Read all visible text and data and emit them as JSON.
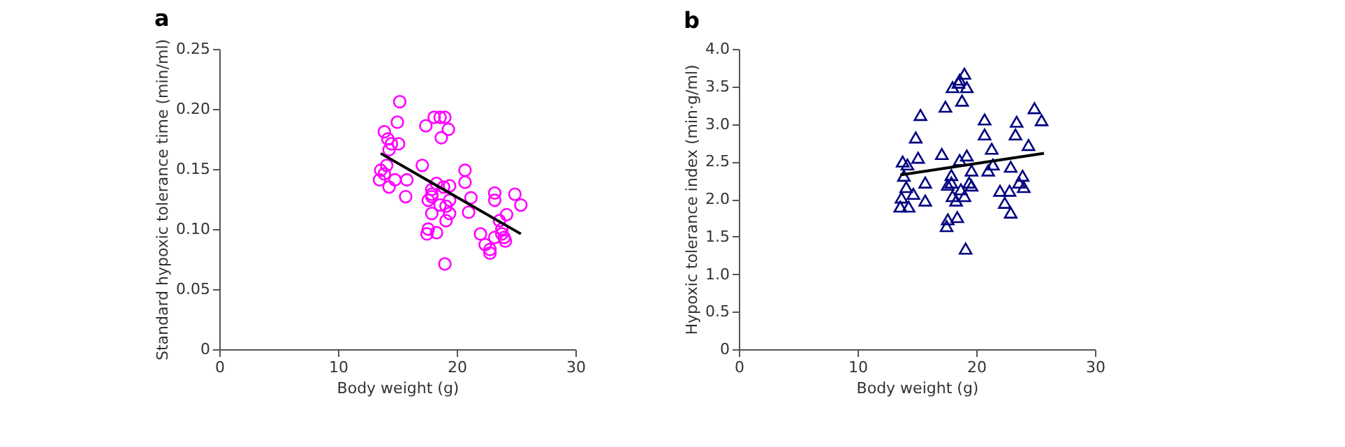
{
  "chart_data": [
    {
      "type": "scatter",
      "title": "a",
      "xlabel": "Body weight (g)",
      "ylabel": "Standard hypoxic tolerance time (min/ml)",
      "xlim": [
        0,
        30
      ],
      "xticks": [
        0,
        10,
        20,
        30
      ],
      "ylim": [
        0,
        0.25
      ],
      "yticks": [
        0,
        0.05,
        {
          "value": 0.1,
          "label": "0.10"
        },
        0.15,
        {
          "value": 0.2,
          "label": "0.20"
        },
        0.25
      ],
      "grid": false,
      "series": [
        {
          "color": "#ff00ff",
          "marker": "circle",
          "x": [
            15.2,
            15.0,
            13.9,
            14.2,
            14.5,
            15.1,
            14.3,
            14.1,
            13.6,
            13.5,
            14.3,
            14.8,
            15.8,
            15.7,
            13.9,
            17.1,
            18.1,
            19.3,
            17.9,
            17.6,
            17.5,
            19.4,
            19.4,
            19.1,
            20.7,
            20.7,
            21.2,
            23.2,
            23.2,
            23.6,
            24.9,
            25.4,
            24.2,
            22.0,
            22.4,
            22.8,
            22.8,
            23.2,
            23.8,
            24.0,
            24.1,
            23.8
          ],
          "values": [
            0.206,
            0.189,
            0.181,
            0.175,
            0.171,
            0.171,
            0.166,
            0.153,
            0.149,
            0.141,
            0.135,
            0.141,
            0.141,
            0.127,
            0.146,
            0.153,
            0.193,
            0.183,
            0.127,
            0.124,
            0.096,
            0.136,
            0.124,
            0.119,
            0.149,
            0.139,
            0.126,
            0.13,
            0.124,
            0.107,
            0.129,
            0.12,
            0.112,
            0.096,
            0.087,
            0.083,
            0.08,
            0.093,
            0.096,
            0.093,
            0.09,
            0.1
          ]
        },
        {
          "color": "#ff00ff",
          "marker": "circle",
          "x": [
            17.4,
            18.6,
            19.0,
            18.7,
            18.3,
            17.9,
            17.9,
            18.9,
            17.9,
            19.4,
            19.1,
            17.6,
            18.3,
            21.0,
            19.0,
            18.6
          ],
          "values": [
            0.186,
            0.193,
            0.193,
            0.176,
            0.138,
            0.133,
            0.129,
            0.135,
            0.113,
            0.113,
            0.107,
            0.1,
            0.097,
            0.114,
            0.071,
            0.12
          ]
        },
        {
          "type": "line",
          "color": "#000000",
          "line_style": "solid",
          "x": [
            13.6,
            25.4
          ],
          "values": [
            0.163,
            0.096
          ]
        }
      ]
    },
    {
      "type": "scatter",
      "title": "b",
      "xlabel": "Body weight (g)",
      "ylabel": "Hypoxic tolerance index (min·g/ml)",
      "xlim": [
        0,
        30
      ],
      "xticks": [
        0,
        10,
        20,
        30
      ],
      "ylim": [
        0,
        4
      ],
      "yticks": [
        0,
        0.5,
        {
          "value": 1,
          "label": "1.0"
        },
        1.5,
        {
          "value": 2,
          "label": "2.0"
        },
        2.5,
        {
          "value": 3,
          "label": "3.0"
        },
        3.5,
        {
          "value": 4,
          "label": "4.0"
        }
      ],
      "grid": false,
      "series": [
        {
          "color": "#000080",
          "marker": "triangle",
          "x": [
            15.3,
            14.9,
            15.1,
            13.8,
            13.9,
            14.1,
            13.7,
            13.6,
            14.3,
            14.7,
            15.7,
            15.7,
            17.1,
            18.0,
            19.2,
            17.6,
            17.5,
            18.7,
            19.2,
            19.6,
            19.4,
            18.3,
            20.7,
            20.7,
            21.3,
            21.4,
            22.0,
            22.8,
            22.4,
            22.9,
            22.9,
            23.4,
            23.3,
            24.4,
            24.9,
            25.5,
            23.9,
            24.0,
            23.6
          ],
          "values": [
            3.12,
            2.82,
            2.55,
            2.5,
            2.31,
            2.16,
            2.02,
            1.9,
            1.9,
            2.07,
            2.22,
            1.98,
            2.6,
            3.49,
            3.49,
            2.19,
            1.64,
            2.13,
            2.58,
            2.38,
            2.22,
            1.98,
            3.06,
            2.86,
            2.67,
            2.46,
            2.11,
            2.11,
            1.95,
            1.82,
            2.43,
            3.03,
            2.86,
            2.72,
            3.21,
            3.05,
            2.31,
            2.16,
            2.22
          ]
        },
        {
          "color": "#000080",
          "marker": "triangle",
          "x": [
            17.4,
            18.8,
            19.0,
            18.6,
            18.5,
            18.6,
            14.2,
            17.9,
            17.9,
            18.0,
            19.0,
            19.6,
            21.0,
            17.6,
            18.4,
            19.1
          ],
          "values": [
            3.23,
            3.31,
            3.67,
            3.59,
            3.55,
            2.52,
            2.46,
            2.32,
            2.22,
            2.04,
            2.04,
            2.18,
            2.38,
            1.73,
            1.76,
            1.34
          ]
        },
        {
          "type": "line",
          "color": "#000000",
          "line_style": "solid",
          "x": [
            13.6,
            25.7
          ],
          "values": [
            2.32,
            2.61
          ]
        }
      ]
    }
  ]
}
